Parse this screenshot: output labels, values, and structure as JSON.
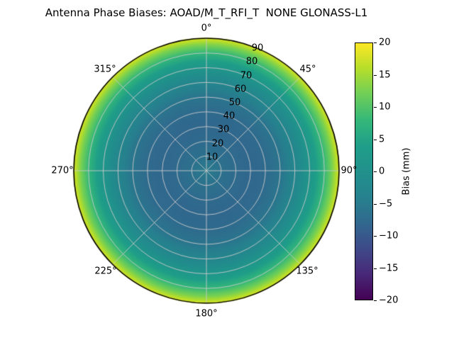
{
  "title": "Antenna Phase Biases: AOAD/M_T_RFI_T  NONE GLONASS-L1",
  "labels": {
    "theta": [
      "0°",
      "45°",
      "90°",
      "135°",
      "180°",
      "225°",
      "270°",
      "315°"
    ],
    "r": [
      "10",
      "20",
      "30",
      "40",
      "50",
      "60",
      "70",
      "80",
      "90"
    ],
    "cbar_ticks": [
      "20",
      "15",
      "10",
      "5",
      "0",
      "−5",
      "−10",
      "−15",
      "−20"
    ],
    "cbar_label": "Bias (mm)"
  },
  "chart_data": {
    "type": "heatmap",
    "projection": "polar",
    "title": "Antenna Phase Biases: AOAD/M_T_RFI_T  NONE GLONASS-L1",
    "antenna": "AOAD/M_T_RFI_T",
    "radome": "NONE",
    "signal": "GLONASS-L1",
    "colormap": "viridis",
    "colormap_stops": [
      "#440154",
      "#482878",
      "#3e4a89",
      "#31688e",
      "#26828e",
      "#21918c",
      "#1f9e89",
      "#35b779",
      "#6ece58",
      "#b5de2b",
      "#fde725"
    ],
    "clim": [
      -20,
      20
    ],
    "colorbar_label": "Bias (mm)",
    "colorbar_ticks": [
      20,
      15,
      10,
      5,
      0,
      -5,
      -10,
      -15,
      -20
    ],
    "theta_ticks_deg": [
      0,
      45,
      90,
      135,
      180,
      225,
      270,
      315
    ],
    "theta_zero": "top",
    "theta_direction": "clockwise",
    "r_ticks": [
      10,
      20,
      30,
      40,
      50,
      60,
      70,
      80,
      90
    ],
    "r_max": 90,
    "grid": true,
    "azimuthally_symmetric": true,
    "radial_profile": {
      "zenith_deg": [
        0,
        10,
        20,
        30,
        40,
        50,
        60,
        65,
        70,
        75,
        80,
        85,
        90
      ],
      "bias_mm": [
        -5,
        -6.5,
        -7.5,
        -8,
        -7.5,
        -6,
        -3,
        -1,
        1.5,
        4.5,
        8,
        12.5,
        18
      ]
    }
  }
}
